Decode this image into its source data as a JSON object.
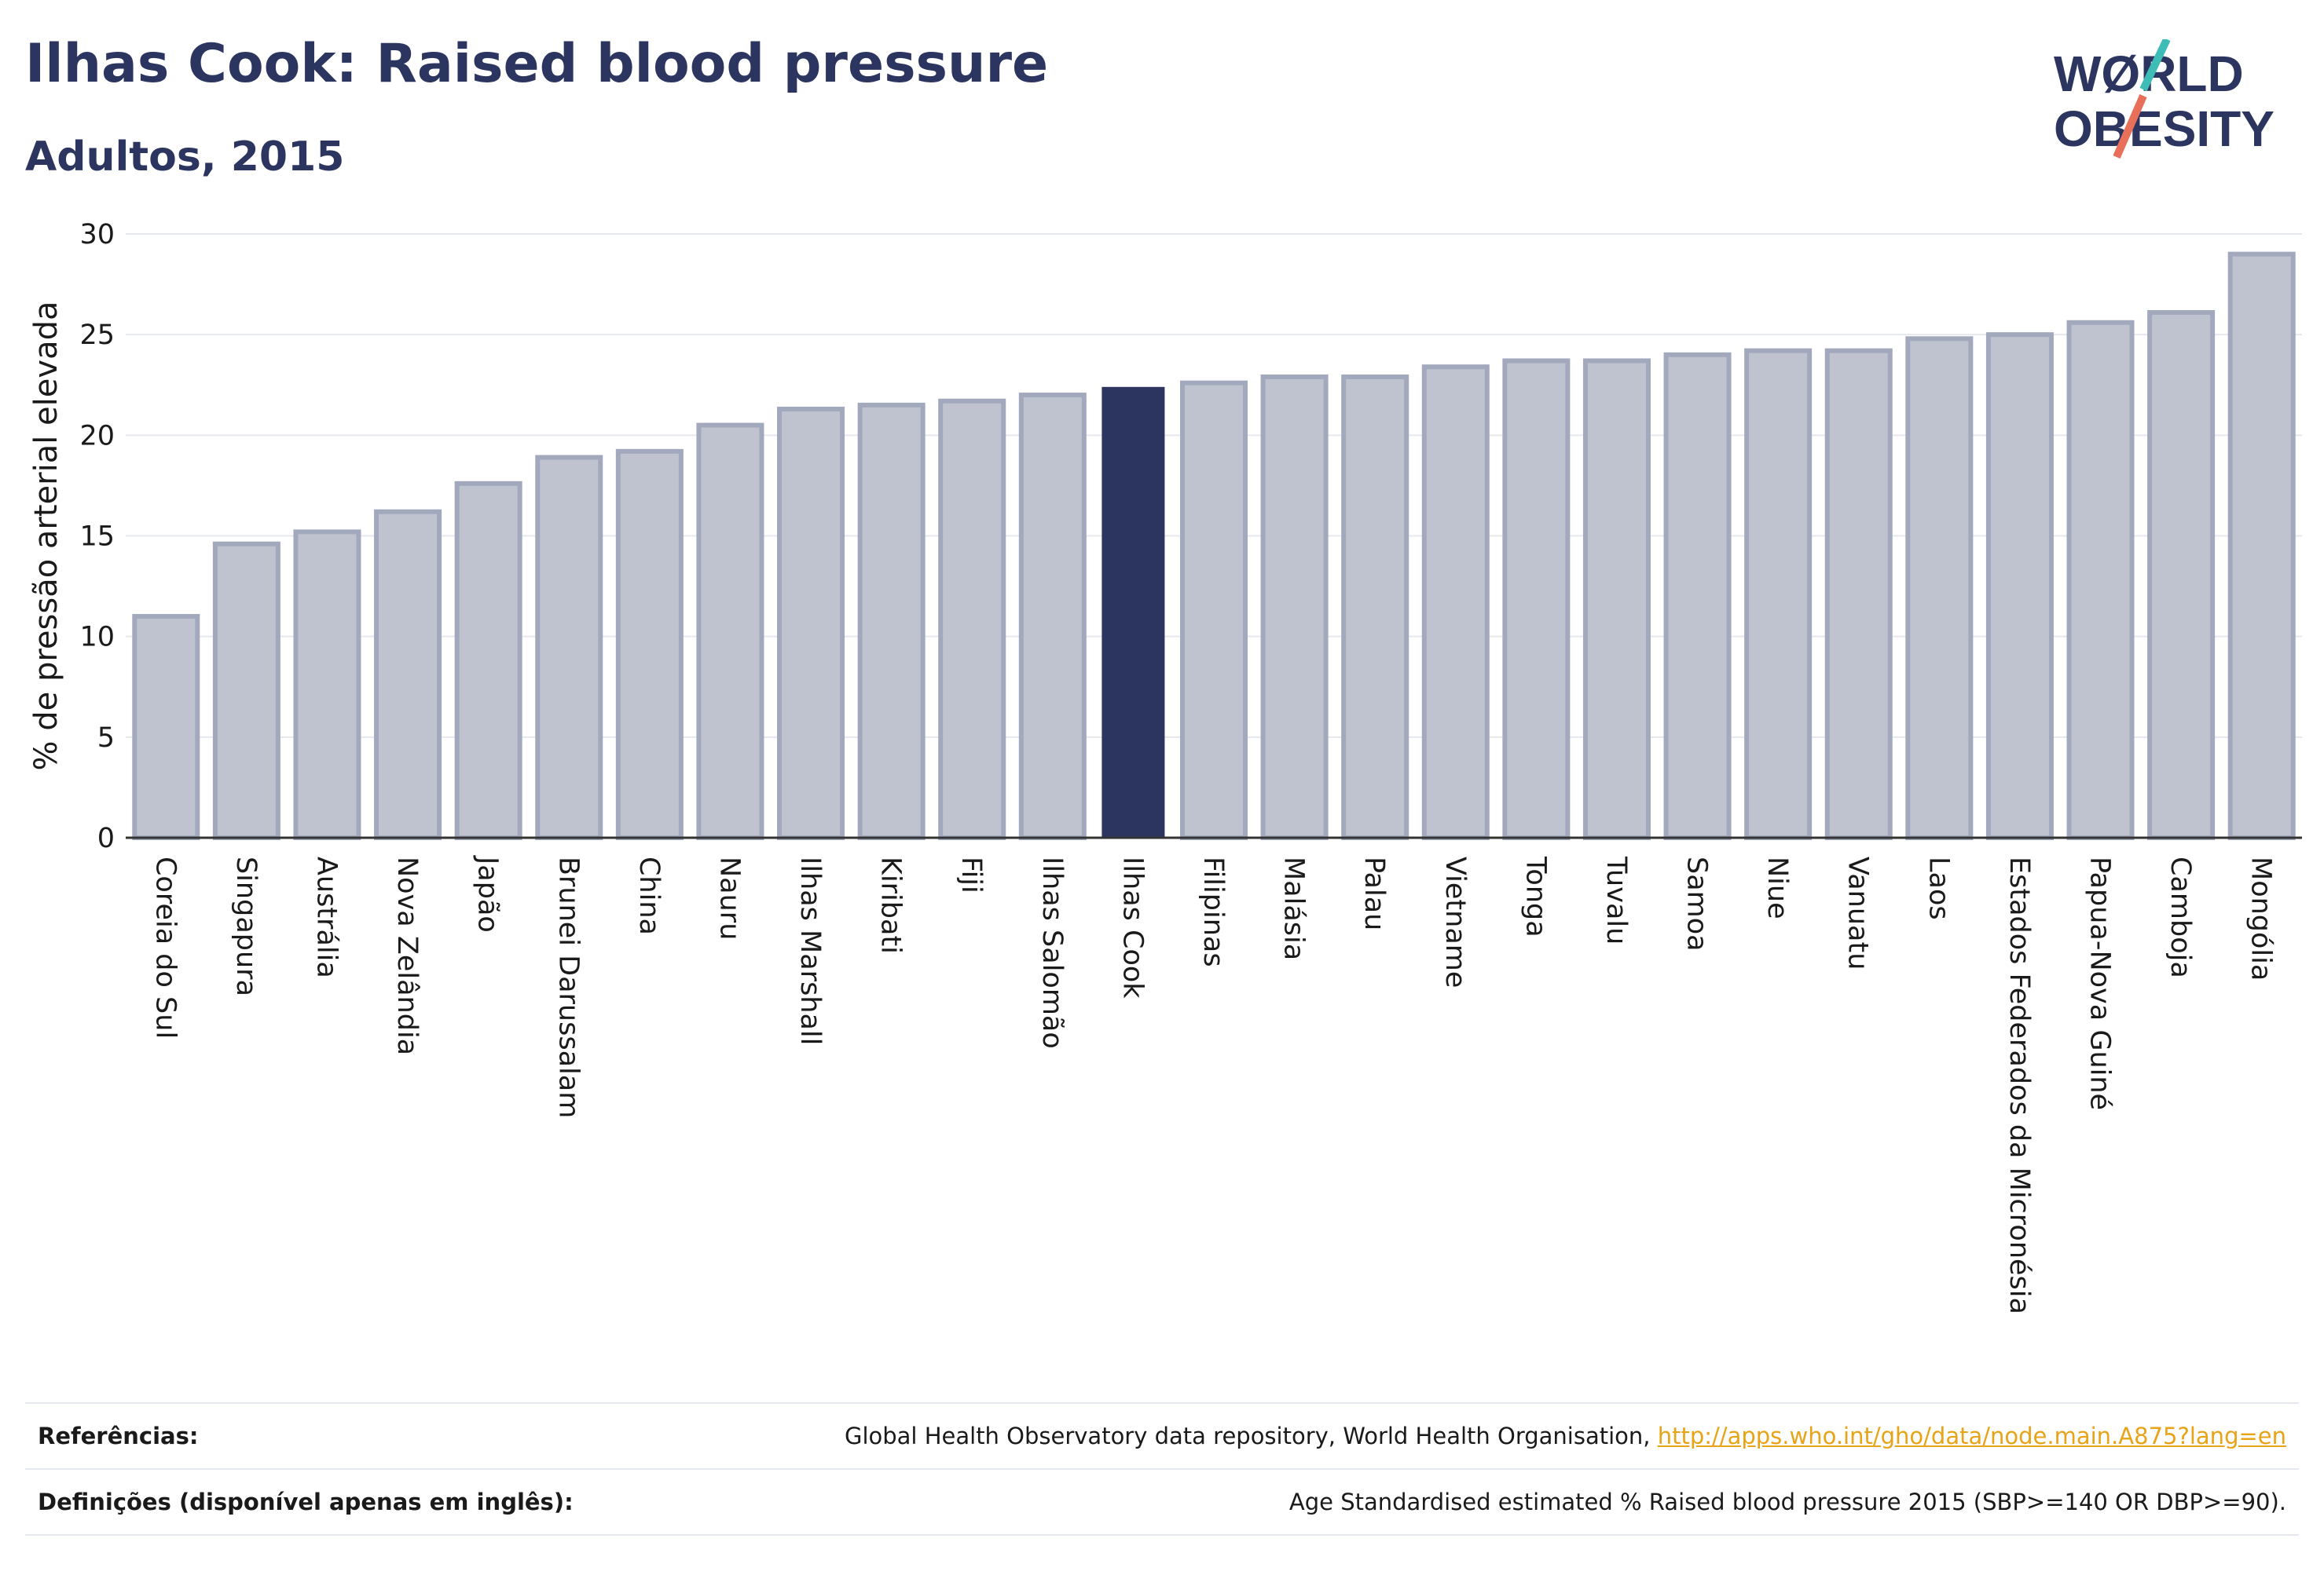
{
  "header": {
    "title": "Ilhas Cook: Raised blood pressure",
    "subtitle": "Adultos, 2015"
  },
  "logo": {
    "line1": "WØRLD",
    "line2": "OBESITY",
    "icon": "world-obesity-logo"
  },
  "colors": {
    "highlight": "#2b3560",
    "bar_fill": "#bfc3d0",
    "bar_stroke": "#a3a9bd",
    "logo_teal": "#3dbdb5",
    "logo_coral": "#e8705a",
    "link": "#e8a317"
  },
  "chart_data": {
    "type": "bar",
    "title": "Ilhas Cook: Raised blood pressure",
    "subtitle": "Adultos, 2015",
    "xlabel": "",
    "ylabel": "% de pressão arterial elevada",
    "ylim": [
      0,
      30
    ],
    "yticks": [
      0,
      5,
      10,
      15,
      20,
      25,
      30
    ],
    "grid": true,
    "highlight": "Ilhas Cook",
    "categories": [
      "Coreia do Sul",
      "Singapura",
      "Austrália",
      "Nova Zelândia",
      "Japão",
      "Brunei Darussalam",
      "China",
      "Nauru",
      "Ilhas Marshall",
      "Kiribati",
      "Fiji",
      "Ilhas Salomão",
      "Ilhas Cook",
      "Filipinas",
      "Malásia",
      "Palau",
      "Vietname",
      "Tonga",
      "Tuvalu",
      "Samoa",
      "Niue",
      "Vanuatu",
      "Laos",
      "Estados Federados da Micronésia",
      "Papua-Nova Guiné",
      "Camboja",
      "Mongólia"
    ],
    "values": [
      11.0,
      14.6,
      15.2,
      16.2,
      17.6,
      18.9,
      19.2,
      20.5,
      21.3,
      21.5,
      21.7,
      22.0,
      22.4,
      22.6,
      22.9,
      22.9,
      23.4,
      23.7,
      23.7,
      24.0,
      24.2,
      24.2,
      24.8,
      25.0,
      25.6,
      26.1,
      29.0
    ]
  },
  "footer": {
    "references_label": "Referências:",
    "references_text": "Global Health Observatory data repository, World Health Organisation, ",
    "references_link": "http://apps.who.int/gho/data/node.main.A875?lang=en",
    "definitions_label": "Definições (disponível apenas em inglês):",
    "definitions_text": "Age Standardised estimated % Raised blood pressure 2015 (SBP>=140 OR DBP>=90)."
  }
}
